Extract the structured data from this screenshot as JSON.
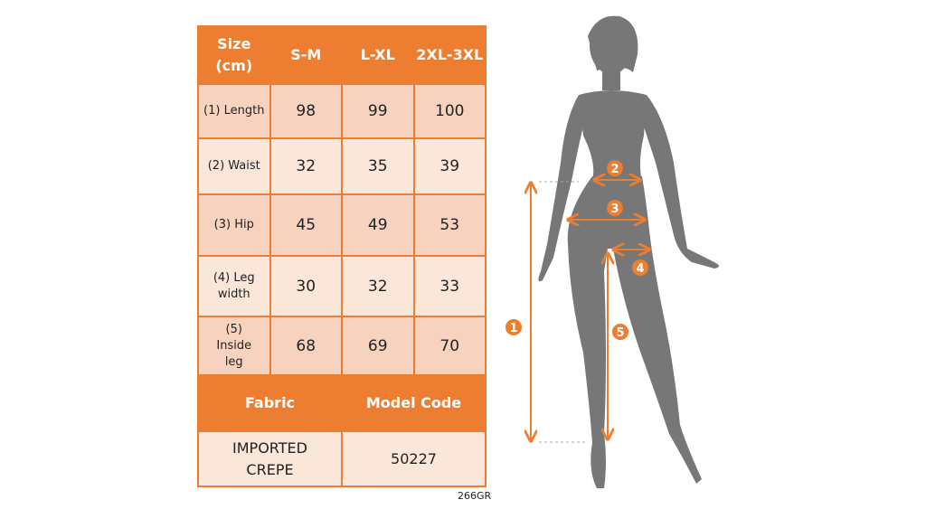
{
  "table": {
    "header": [
      "Size (cm)",
      "S-M",
      "L-XL",
      "2XL-3XL"
    ],
    "rows": [
      {
        "label": "(1) Length",
        "values": [
          "98",
          "99",
          "100"
        ]
      },
      {
        "label": "(2) Waist",
        "values": [
          "32",
          "35",
          "39"
        ]
      },
      {
        "label": "(3) Hip",
        "values": [
          "45",
          "49",
          "53"
        ]
      },
      {
        "label": "(4) Leg width",
        "values": [
          "30",
          "32",
          "33"
        ]
      },
      {
        "label": "(5) Inside leg",
        "values": [
          "68",
          "69",
          "70"
        ]
      }
    ],
    "footer_header": [
      "Fabric",
      "Model Code"
    ],
    "footer_values": [
      "IMPORTED CREPE",
      "50227"
    ]
  },
  "product_code": "266GR",
  "figure": {
    "markers": [
      "1",
      "2",
      "3",
      "4",
      "5"
    ]
  },
  "colors": {
    "accent": "#ed7d31",
    "row_dark": "#f7d3bf",
    "row_light": "#fbe6da",
    "silhouette": "#777777"
  }
}
